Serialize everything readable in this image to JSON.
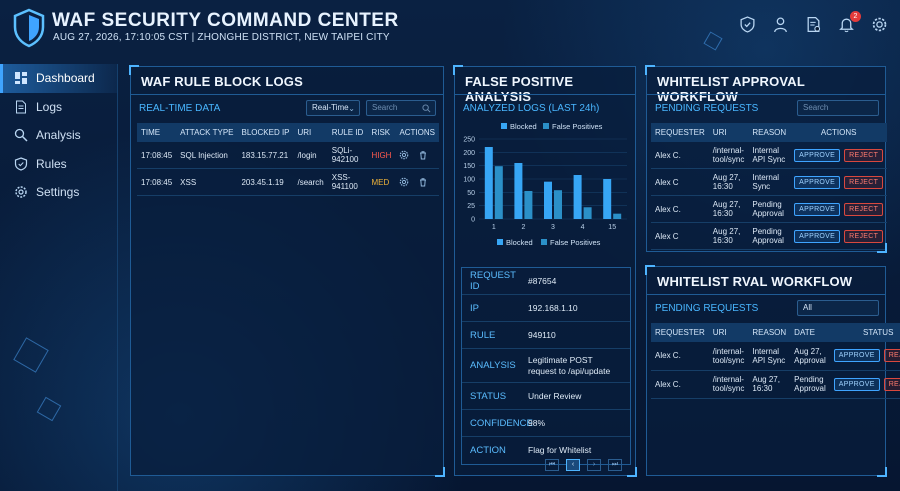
{
  "app": {
    "title": "WAF SECURITY COMMAND CENTER",
    "subtitle": "AUG 27, 2026, 17:10:05 CST | ZHONGHE DISTRICT, NEW TAIPEI CITY",
    "notification_count": "2",
    "accent_color": "#3fa4ff",
    "top_icons": [
      "shield-check-icon",
      "user-icon",
      "document-settings-icon",
      "bell-icon",
      "gear-icon"
    ]
  },
  "sidebar": {
    "items": [
      {
        "label": "Dashboard",
        "icon": "dashboard-icon"
      },
      {
        "label": "Logs",
        "icon": "document-icon"
      },
      {
        "label": "Analysis",
        "icon": "magnifier-icon"
      },
      {
        "label": "Rules",
        "icon": "shield-icon"
      },
      {
        "label": "Settings",
        "icon": "gear-icon"
      }
    ]
  },
  "block_logs": {
    "title": "WAF RULE BLOCK LOGS",
    "section": "REAL-TIME DATA",
    "mode_select": "Real-Time",
    "search_placeholder": "Search",
    "columns": [
      "TIME",
      "ATTACK TYPE",
      "BLOCKED IP",
      "URI",
      "RULE ID",
      "RISK",
      "ACTIONS"
    ],
    "rows": [
      {
        "time": "17:08:45",
        "type": "SQL Injection",
        "ip": "183.15.77.21",
        "uri": "/login",
        "rule": "SQLi-942100",
        "risk": "HIGH"
      },
      {
        "time": "17:08:45",
        "type": "XSS",
        "ip": "203.45.1.19",
        "uri": "/search",
        "rule": "XSS-941100",
        "risk": "MED"
      }
    ]
  },
  "false_positive": {
    "title": "FALSE POSITIVE ANALYSIS",
    "section": "ANALYZED LOGS (LAST 24h)",
    "details": [
      {
        "key": "REQUEST ID",
        "value": "#87654"
      },
      {
        "key": "IP",
        "value": "192.168.1.10"
      },
      {
        "key": "RULE",
        "value": "949110"
      },
      {
        "key": "ANALYSIS",
        "value": "Legitimate POST request to /api/update"
      },
      {
        "key": "STATUS",
        "value": "Under Review"
      },
      {
        "key": "CONFIDENCE",
        "value": "98%"
      },
      {
        "key": "ACTION",
        "value": "Flag for Whitelist"
      }
    ],
    "pager": [
      "⏮",
      "‹",
      "›",
      "⏭"
    ]
  },
  "chart_data": {
    "type": "bar",
    "categories": [
      "1",
      "2",
      "3",
      "4",
      "15"
    ],
    "series": [
      {
        "name": "Blocked",
        "values": [
          220,
          160,
          90,
          115,
          100
        ],
        "color": "#37a6f5"
      },
      {
        "name": "False Positives",
        "values": [
          148,
          55,
          58,
          22,
          10
        ],
        "color": "#2b90c8"
      }
    ],
    "yticks": [
      "0",
      "25",
      "50",
      "100",
      "150",
      "200",
      "250"
    ],
    "ylim": [
      0,
      250
    ],
    "legend_top": [
      "Blocked",
      "False Positives"
    ],
    "legend_bottom": [
      "Blocked",
      "False Positives"
    ],
    "grid": true
  },
  "whitelist": {
    "title": "WHITELIST APPROVAL WORKFLOW",
    "section": "PENDING REQUESTS",
    "search_placeholder": "Search",
    "columns": [
      "REQUESTER",
      "URI",
      "REASON",
      "ACTIONS"
    ],
    "approve_label": "APPROVE",
    "reject_label": "REJECT",
    "rows": [
      {
        "requester": "Alex C.",
        "uri": "/internal-tool/sync",
        "reason": "Internal API Sync"
      },
      {
        "requester": "Alex C",
        "uri": "Aug 27, 16:30",
        "reason": "Internal Sync"
      },
      {
        "requester": "Alex C.",
        "uri": "Aug 27, 16:30",
        "reason": "Pending Approval"
      },
      {
        "requester": "Alex C",
        "uri": "Aug 27, 16:30",
        "reason": "Pending Approval"
      }
    ]
  },
  "whitelist2": {
    "title": "WHITELIST RVAL WORKFLOW",
    "section": "PENDING REQUESTS",
    "filter_select": "All",
    "columns": [
      "REQUESTER",
      "URI",
      "REASON",
      "DATE",
      "STATUS"
    ],
    "approve_label": "APPROVE",
    "reject_label": "REJECT",
    "rows": [
      {
        "requester": "Alex C.",
        "uri": "/internal-tool/sync",
        "reason": "Internal API Sync",
        "date": "Aug 27, Approval"
      },
      {
        "requester": "Alex C.",
        "uri": "/internal-tool/sync",
        "reason": "Aug 27, 16:30",
        "date": "Pending Approval"
      }
    ]
  }
}
